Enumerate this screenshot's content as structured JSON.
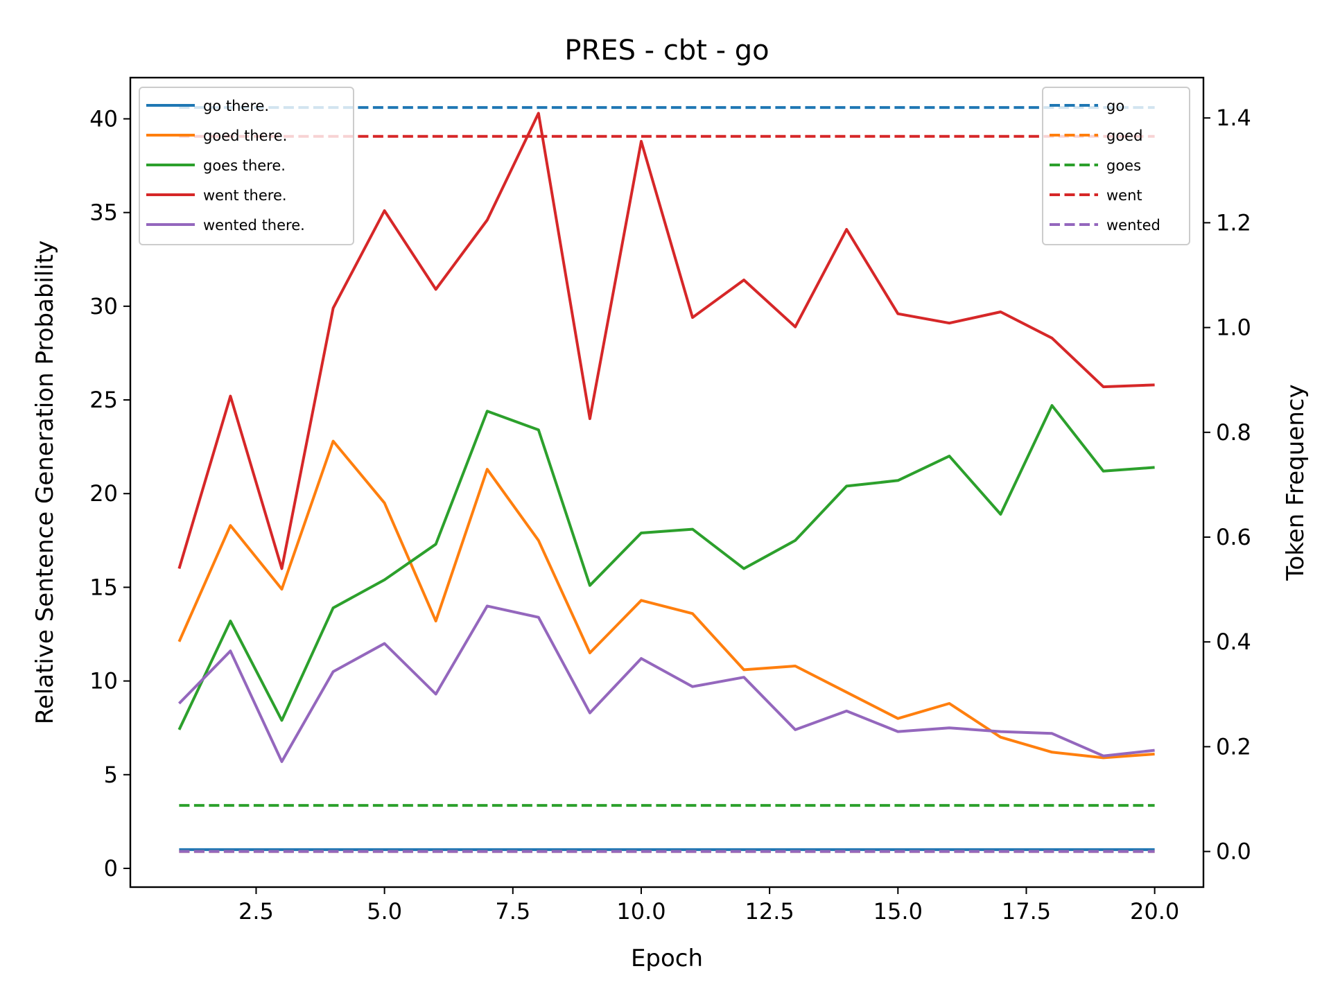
{
  "chart_data": {
    "type": "line",
    "title": "PRES - cbt - go",
    "xlabel": "Epoch",
    "ylabel": "Relative Sentence Generation Probability",
    "y2label": "Token Frequency",
    "xlim": [
      0.05,
      20.95
    ],
    "ylim": [
      -1.0,
      42.2
    ],
    "y2lim": [
      -0.068,
      1.477
    ],
    "x_ticks": [
      2.5,
      5.0,
      7.5,
      10.0,
      12.5,
      15.0,
      17.5,
      20.0
    ],
    "x_tick_labels": [
      "2.5",
      "5.0",
      "7.5",
      "10.0",
      "12.5",
      "15.0",
      "17.5",
      "20.0"
    ],
    "y_ticks": [
      0,
      5,
      10,
      15,
      20,
      25,
      30,
      35,
      40
    ],
    "y_tick_labels": [
      "0",
      "5",
      "10",
      "15",
      "20",
      "25",
      "30",
      "35",
      "40"
    ],
    "y2_ticks": [
      0.0,
      0.2,
      0.4,
      0.6,
      0.8,
      1.0,
      1.2,
      1.4
    ],
    "y2_tick_labels": [
      "0.0",
      "0.2",
      "0.4",
      "0.6",
      "0.8",
      "1.0",
      "1.2",
      "1.4"
    ],
    "grid": false,
    "x": [
      1,
      2,
      3,
      4,
      5,
      6,
      7,
      8,
      9,
      10,
      11,
      12,
      13,
      14,
      15,
      16,
      17,
      18,
      19,
      20
    ],
    "series": [
      {
        "name": "go there.",
        "axis": "left",
        "style": "solid",
        "color": "#1f77b4",
        "values": [
          1.0,
          1.0,
          1.0,
          1.0,
          1.0,
          1.0,
          1.0,
          1.0,
          1.0,
          1.0,
          1.0,
          1.0,
          1.0,
          1.0,
          1.0,
          1.0,
          1.0,
          1.0,
          1.0,
          1.0
        ]
      },
      {
        "name": "goed there.",
        "axis": "left",
        "style": "solid",
        "color": "#ff7f0e",
        "values": [
          12.1,
          18.3,
          14.9,
          22.8,
          19.5,
          13.2,
          21.3,
          17.5,
          11.5,
          14.3,
          13.6,
          10.6,
          10.8,
          9.4,
          8.0,
          8.8,
          7.0,
          6.2,
          5.9,
          6.1
        ]
      },
      {
        "name": "goes there.",
        "axis": "left",
        "style": "solid",
        "color": "#2ca02c",
        "values": [
          7.4,
          13.2,
          7.9,
          13.9,
          15.4,
          17.3,
          24.4,
          23.4,
          15.1,
          17.9,
          18.1,
          16.0,
          17.5,
          20.4,
          20.7,
          22.0,
          18.9,
          24.7,
          21.2,
          21.4
        ]
      },
      {
        "name": "went there.",
        "axis": "left",
        "style": "solid",
        "color": "#d62728",
        "values": [
          16.0,
          25.2,
          16.0,
          29.9,
          35.1,
          30.9,
          34.6,
          40.3,
          24.0,
          38.8,
          29.4,
          31.4,
          28.9,
          34.1,
          29.6,
          29.1,
          29.7,
          28.3,
          25.7,
          25.8
        ]
      },
      {
        "name": "wented there.",
        "axis": "left",
        "style": "solid",
        "color": "#9467bd",
        "values": [
          8.8,
          11.6,
          5.7,
          10.5,
          12.0,
          9.3,
          14.0,
          13.4,
          8.3,
          11.2,
          9.7,
          10.2,
          7.4,
          8.4,
          7.3,
          7.5,
          7.3,
          7.2,
          6.0,
          6.3
        ]
      },
      {
        "name": "go",
        "axis": "right",
        "style": "dashed",
        "color": "#1f77b4",
        "values": [
          1.42,
          1.42,
          1.42,
          1.42,
          1.42,
          1.42,
          1.42,
          1.42,
          1.42,
          1.42,
          1.42,
          1.42,
          1.42,
          1.42,
          1.42,
          1.42,
          1.42,
          1.42,
          1.42,
          1.42
        ]
      },
      {
        "name": "goed",
        "axis": "right",
        "style": "dashed",
        "color": "#ff7f0e",
        "values": [
          0.0,
          0.0,
          0.0,
          0.0,
          0.0,
          0.0,
          0.0,
          0.0,
          0.0,
          0.0,
          0.0,
          0.0,
          0.0,
          0.0,
          0.0,
          0.0,
          0.0,
          0.0,
          0.0,
          0.0
        ]
      },
      {
        "name": "goes",
        "axis": "right",
        "style": "dashed",
        "color": "#2ca02c",
        "values": [
          0.088,
          0.088,
          0.088,
          0.088,
          0.088,
          0.088,
          0.088,
          0.088,
          0.088,
          0.088,
          0.088,
          0.088,
          0.088,
          0.088,
          0.088,
          0.088,
          0.088,
          0.088,
          0.088,
          0.088
        ]
      },
      {
        "name": "went",
        "axis": "right",
        "style": "dashed",
        "color": "#d62728",
        "values": [
          1.365,
          1.365,
          1.365,
          1.365,
          1.365,
          1.365,
          1.365,
          1.365,
          1.365,
          1.365,
          1.365,
          1.365,
          1.365,
          1.365,
          1.365,
          1.365,
          1.365,
          1.365,
          1.365,
          1.365
        ]
      },
      {
        "name": "wented",
        "axis": "right",
        "style": "dashed",
        "color": "#9467bd",
        "values": [
          0.0,
          0.0,
          0.0,
          0.0,
          0.0,
          0.0,
          0.0,
          0.0,
          0.0,
          0.0,
          0.0,
          0.0,
          0.0,
          0.0,
          0.0,
          0.0,
          0.0,
          0.0,
          0.0,
          0.0
        ]
      }
    ],
    "legends": [
      {
        "position": "upper-left",
        "entries": [
          "go there.",
          "goed there.",
          "goes there.",
          "went there.",
          "wented there."
        ]
      },
      {
        "position": "upper-right",
        "entries": [
          "go",
          "goed",
          "goes",
          "went",
          "wented"
        ]
      }
    ]
  }
}
